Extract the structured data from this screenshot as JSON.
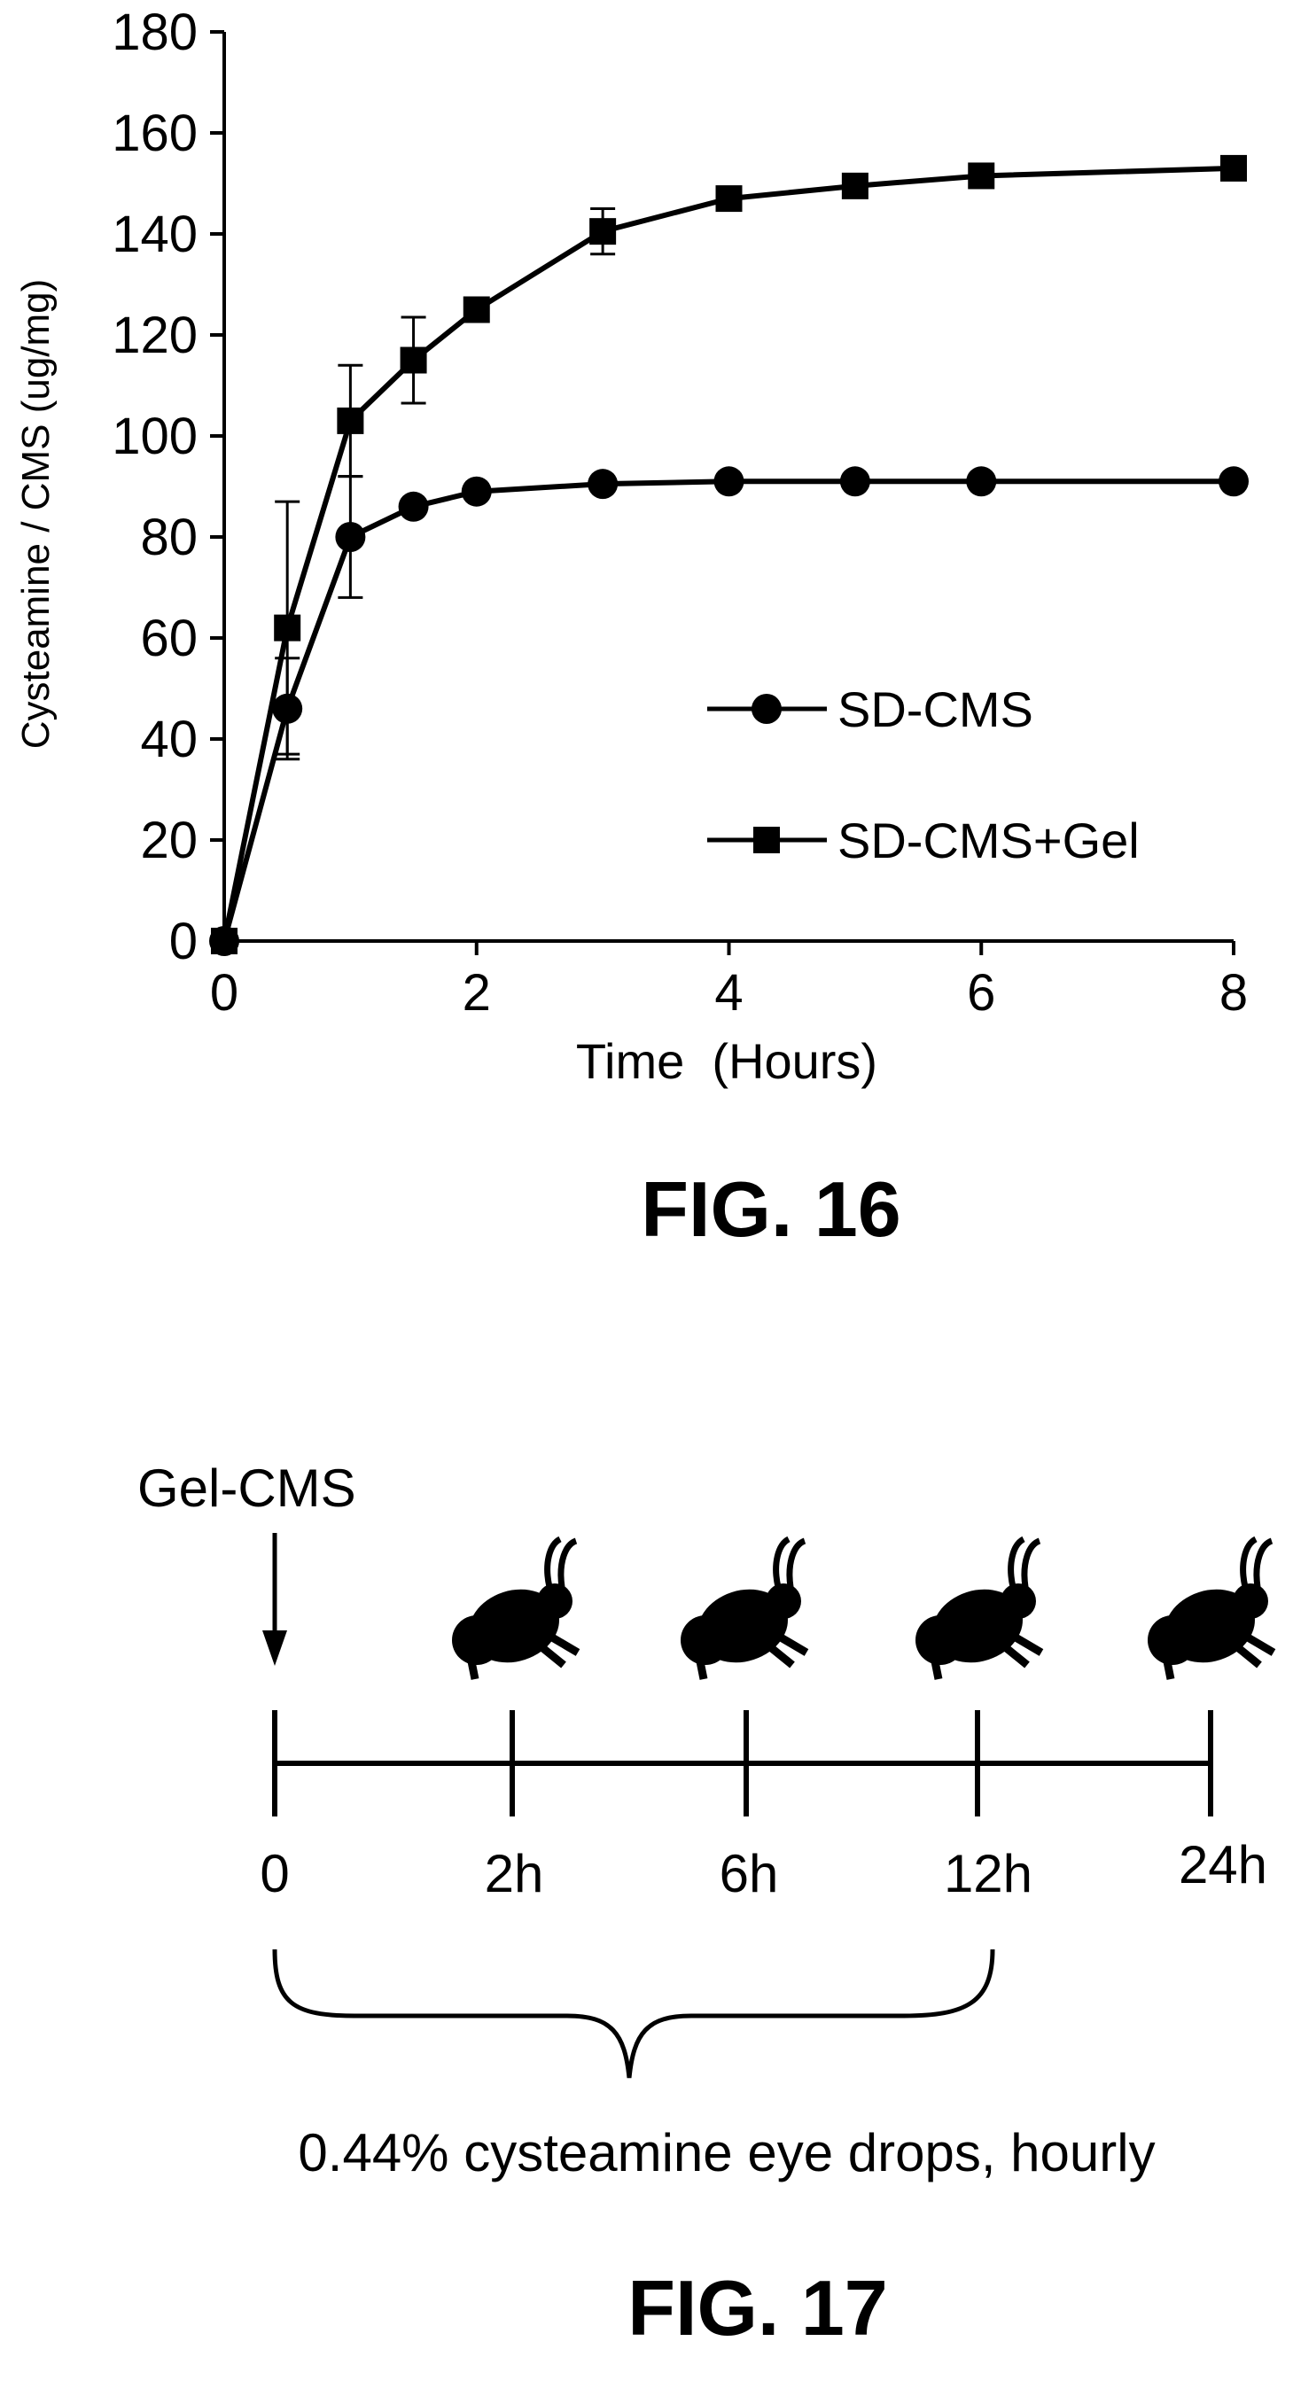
{
  "chart_data": {
    "type": "line",
    "title": "",
    "xlabel": "Time  (Hours)",
    "ylabel": "Cysteamine / CMS (ug/mg)",
    "xlim": [
      0,
      8
    ],
    "ylim": [
      0,
      180
    ],
    "xticks": [
      0,
      2,
      4,
      6,
      8
    ],
    "yticks": [
      0,
      20,
      40,
      60,
      80,
      100,
      120,
      140,
      160,
      180
    ],
    "grid": false,
    "legend_position": "lower-right",
    "series": [
      {
        "name": "SD-CMS",
        "marker": "circle",
        "color": "#000000",
        "x": [
          0,
          0.5,
          1,
          1.5,
          2,
          3,
          4,
          5,
          6,
          8
        ],
        "y": [
          0,
          46,
          80,
          86,
          89,
          90.5,
          91,
          91,
          91,
          91
        ],
        "err": [
          0,
          10,
          12,
          0,
          0,
          0,
          0,
          0,
          0,
          0
        ]
      },
      {
        "name": "SD-CMS+Gel",
        "marker": "square",
        "color": "#000000",
        "x": [
          0,
          0.5,
          1,
          1.5,
          2,
          3,
          4,
          5,
          6,
          8
        ],
        "y": [
          0,
          62,
          103,
          115,
          125,
          140.5,
          147,
          149.5,
          151.5,
          153
        ],
        "err": [
          0,
          25,
          11,
          8.5,
          0,
          4.5,
          0,
          0,
          0,
          0
        ]
      }
    ]
  },
  "fig16": {
    "label": "FIG. 16"
  },
  "fig17": {
    "label": "FIG. 17",
    "arrow_label": "Gel-CMS",
    "timepoints": [
      "0",
      "2h",
      "6h",
      "12h",
      "24h"
    ],
    "brace_label": "0.44% cysteamine eye drops, hourly",
    "rabbit_icon": "rabbit-icon"
  }
}
